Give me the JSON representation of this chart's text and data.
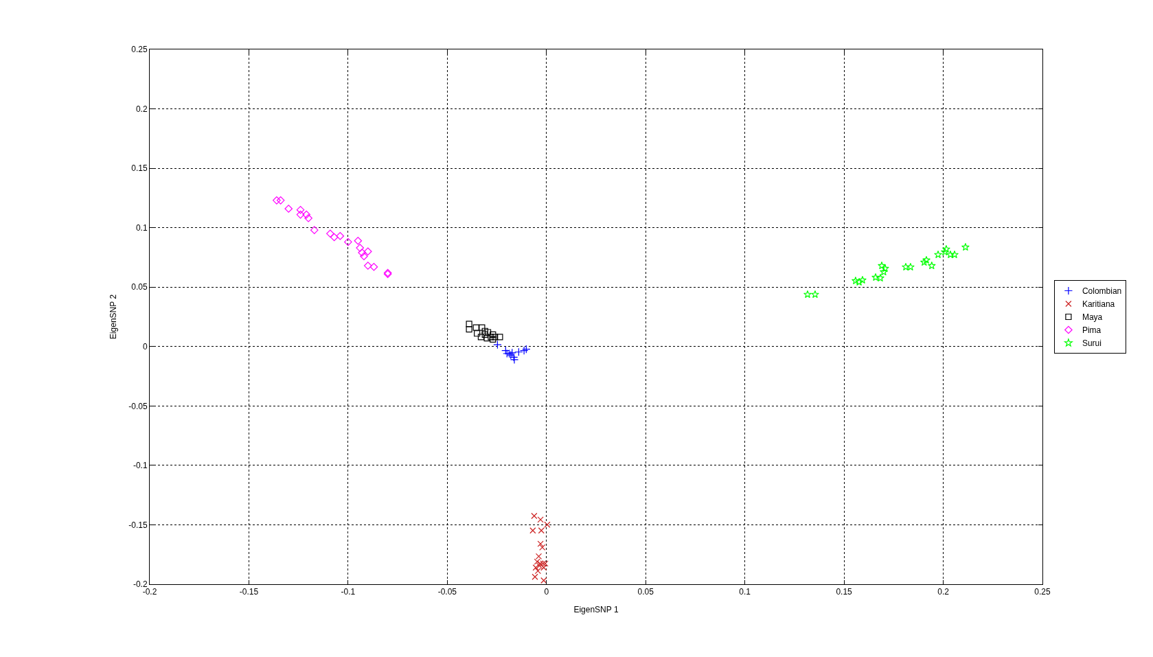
{
  "chart_data": {
    "type": "scatter",
    "xlabel": "EigenSNP 1",
    "ylabel": "EigenSNP 2",
    "xlim": [
      -0.2,
      0.25
    ],
    "ylim": [
      -0.2,
      0.25
    ],
    "xticks": [
      -0.2,
      -0.15,
      -0.1,
      -0.05,
      0,
      0.05,
      0.1,
      0.15,
      0.2,
      0.25
    ],
    "yticks": [
      -0.2,
      -0.15,
      -0.1,
      -0.05,
      0,
      0.05,
      0.1,
      0.15,
      0.2,
      0.25
    ],
    "grid": true,
    "legend": "right",
    "series": [
      {
        "name": "Colombian",
        "color": "#0000ff",
        "marker": "cross",
        "x": [
          -0.0247,
          -0.0206,
          -0.0188,
          -0.018,
          -0.0173,
          -0.0165,
          -0.0162,
          -0.014,
          -0.0113,
          -0.0102,
          -0.0199
        ],
        "values": [
          0.0015,
          -0.0034,
          -0.0059,
          -0.0071,
          -0.0052,
          -0.009,
          -0.011,
          -0.0046,
          -0.0034,
          -0.0022,
          -0.0059
        ]
      },
      {
        "name": "Karitiana",
        "color": "#cc2222",
        "marker": "x",
        "x": [
          -0.0062,
          -0.003,
          0.0004,
          -0.0069,
          -0.0026,
          -0.003,
          -0.0021,
          -0.0039,
          -0.0047,
          -0.0036,
          -0.0017,
          -0.0054,
          -0.0043,
          -0.0006,
          -0.0058,
          -0.0014,
          -0.0014,
          -0.0032
        ],
        "values": [
          -0.1425,
          -0.1456,
          -0.1499,
          -0.1548,
          -0.1548,
          -0.166,
          -0.169,
          -0.1765,
          -0.181,
          -0.1845,
          -0.1826,
          -0.186,
          -0.1888,
          -0.1826,
          -0.1938,
          -0.186,
          -0.1968,
          -0.1826
        ]
      },
      {
        "name": "Maya",
        "color": "#000000",
        "marker": "square",
        "x": [
          -0.039,
          -0.039,
          -0.0355,
          -0.0325,
          -0.031,
          -0.031,
          -0.0295,
          -0.028,
          -0.03,
          -0.027,
          -0.026,
          -0.0235,
          -0.027,
          -0.033,
          -0.035
        ],
        "values": [
          0.019,
          0.0145,
          0.016,
          0.016,
          0.013,
          0.01,
          0.012,
          0.008,
          0.007,
          0.01,
          0.008,
          0.008,
          0.006,
          0.008,
          0.011
        ]
      },
      {
        "name": "Pima",
        "color": "#ff00ff",
        "marker": "diamond",
        "x": [
          -0.136,
          -0.134,
          -0.13,
          -0.124,
          -0.121,
          -0.124,
          -0.12,
          -0.117,
          -0.109,
          -0.107,
          -0.104,
          -0.1,
          -0.095,
          -0.094,
          -0.093,
          -0.09,
          -0.092,
          -0.09,
          -0.087,
          -0.08,
          -0.08
        ],
        "values": [
          0.123,
          0.123,
          0.116,
          0.115,
          0.111,
          0.111,
          0.108,
          0.098,
          0.095,
          0.092,
          0.093,
          0.088,
          0.089,
          0.083,
          0.079,
          0.08,
          0.076,
          0.068,
          0.067,
          0.062,
          0.061
        ]
      },
      {
        "name": "Surui",
        "color": "#00ff00",
        "marker": "star",
        "x": [
          0.1316,
          0.1354,
          0.1558,
          0.1576,
          0.1593,
          0.1659,
          0.1683,
          0.169,
          0.1707,
          0.17,
          0.1811,
          0.1835,
          0.1904,
          0.1915,
          0.1942,
          0.1974,
          0.2008,
          0.2015,
          0.2036,
          0.2057,
          0.2112
        ],
        "values": [
          0.0438,
          0.0438,
          0.0553,
          0.0542,
          0.0559,
          0.0582,
          0.0576,
          0.068,
          0.0657,
          0.0628,
          0.0669,
          0.0669,
          0.0709,
          0.0727,
          0.068,
          0.0773,
          0.0796,
          0.0819,
          0.0773,
          0.0773,
          0.0836
        ]
      }
    ]
  }
}
